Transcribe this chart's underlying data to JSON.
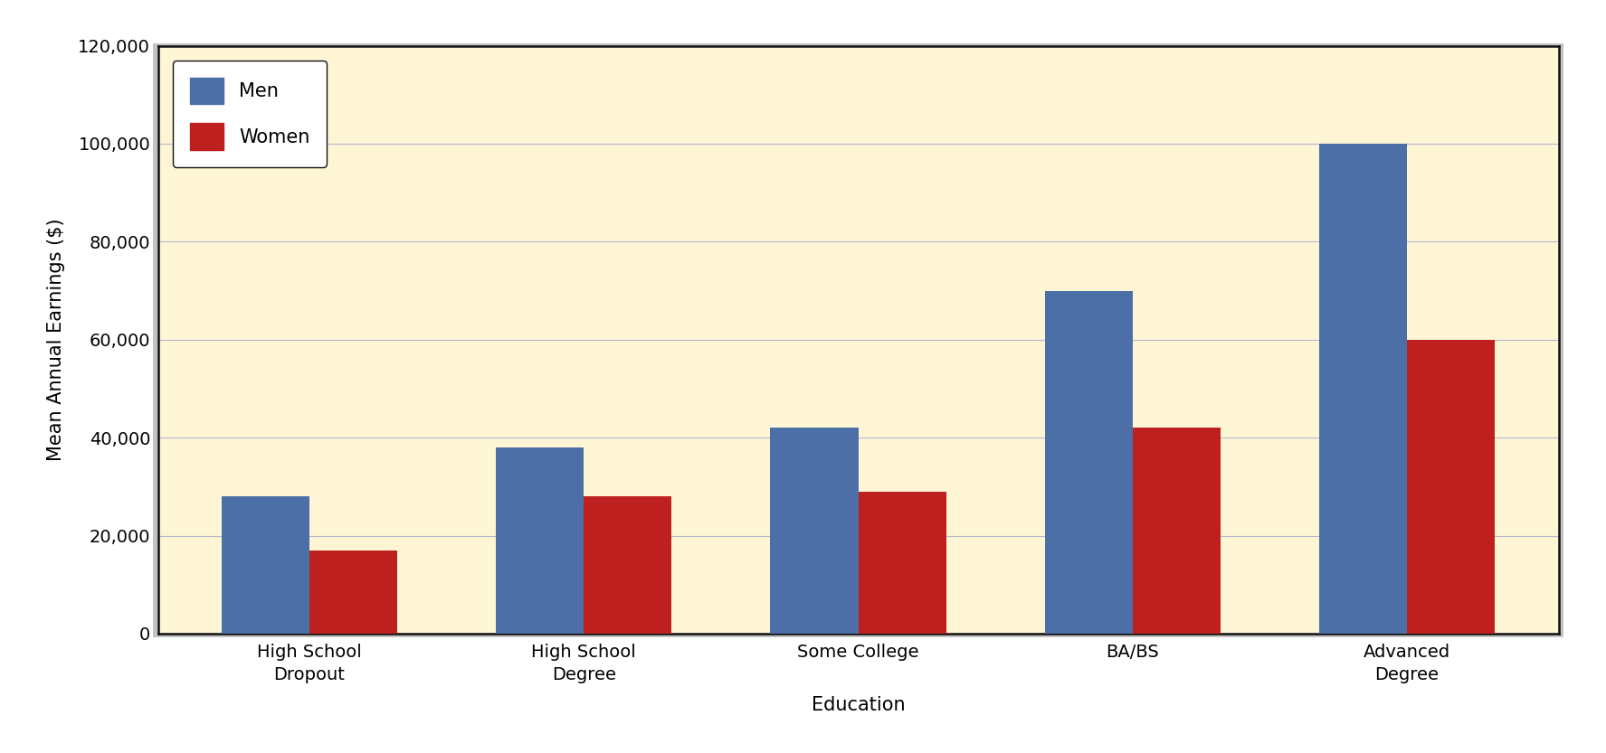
{
  "categories": [
    "High School\nDropout",
    "High School\nDegree",
    "Some College",
    "BA/BS",
    "Advanced\nDegree"
  ],
  "men_values": [
    28000,
    38000,
    42000,
    70000,
    100000
  ],
  "women_values": [
    17000,
    28000,
    29000,
    42000,
    60000
  ],
  "men_color": "#4d6fa8",
  "women_color": "#be2020",
  "plot_bg_color": "#fdf5d4",
  "fig_bg_color": "#ffffff",
  "xlabel": "Education",
  "ylabel": "Mean Annual Earnings ($)",
  "ylim": [
    0,
    120000
  ],
  "yticks": [
    0,
    20000,
    40000,
    60000,
    80000,
    100000,
    120000
  ],
  "ytick_labels": [
    "0",
    "20,000",
    "40,000",
    "60,000",
    "80,000",
    "100,000",
    "120,000"
  ],
  "legend_labels": [
    "Men",
    "Women"
  ],
  "bar_width": 0.32,
  "axis_fontsize": 15,
  "tick_fontsize": 14,
  "legend_fontsize": 15,
  "grid_color": "#b8b8cc",
  "grid_linewidth": 0.8
}
